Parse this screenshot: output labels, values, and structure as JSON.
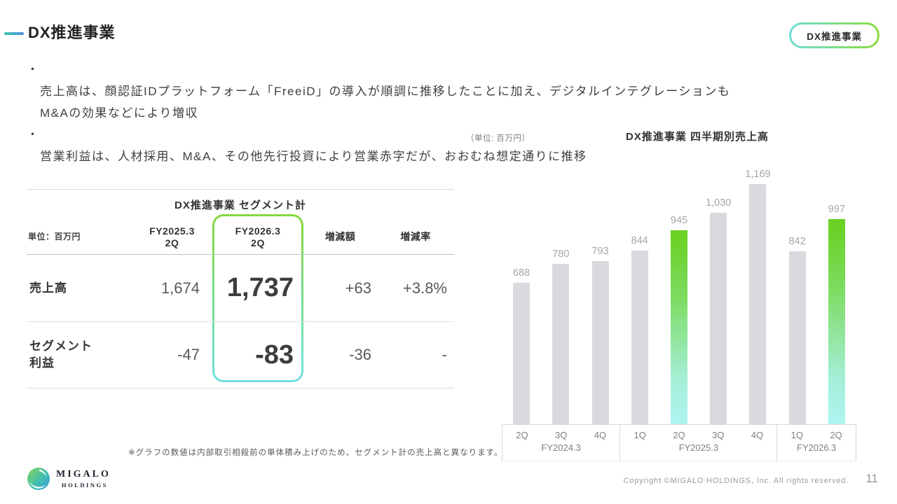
{
  "colors": {
    "accent_line_gradient": [
      "#3fc9a8",
      "#4a8fe2"
    ],
    "badge_border_gradient": [
      "#6fdcd4",
      "#8bdc3f"
    ],
    "highlight_border_gradient": [
      "#84d93c",
      "#6fe0e0"
    ],
    "bar_gray": "#d8dade",
    "bar_highlight_top": "#68d11e",
    "bar_highlight_bottom": "#aef4f0",
    "text_dark": "#3a3a3a",
    "label_gray": "#a6a6a6"
  },
  "header": {
    "title": "DX推進事業",
    "badge_label": "DX推進事業"
  },
  "bullets": [
    {
      "marker": "・",
      "text": "売上高は、顔認証IDプラットフォーム「FreeiD」の導入が順調に推移したことに加え、デジタルインテグレーションも\nM&Aの効果などにより増収"
    },
    {
      "marker": "・",
      "text": "営業利益は、人材採用、M&A、その他先行投資により営業赤字だが、おおむね想定通りに推移"
    }
  ],
  "table": {
    "title": "DX推進事業 セグメント計",
    "unit_label": "単位：百万円",
    "columns": [
      "FY2025.3\n2Q",
      "FY2026.3\n2Q",
      "増減額",
      "増減率"
    ],
    "rows": [
      {
        "label": "売上高",
        "prev": "1,674",
        "current": "1,737",
        "change": "+63",
        "rate": "+3.8%"
      },
      {
        "label": "セグメント\n利益",
        "prev": "-47",
        "current": "-83",
        "change": "-36",
        "rate": "-"
      }
    ],
    "footnote": "※グラフの数値は内部取引相殺前の単体積み上げのため、セグメント計の売上高と異なります。"
  },
  "chart_data": {
    "type": "bar",
    "title": "DX推進事業 四半期別売上高",
    "unit_label": "（単位: 百万円）",
    "categories": [
      "2Q",
      "3Q",
      "4Q",
      "1Q",
      "2Q",
      "3Q",
      "4Q",
      "1Q",
      "2Q"
    ],
    "groups": [
      {
        "label": "FY2024.3",
        "count": 3
      },
      {
        "label": "FY2025.3",
        "count": 4
      },
      {
        "label": "FY2026.3",
        "count": 2
      }
    ],
    "values": [
      688,
      780,
      793,
      844,
      945,
      1030,
      1169,
      842,
      997
    ],
    "value_labels": [
      "688",
      "780",
      "793",
      "844",
      "945",
      "1,030",
      "1,169",
      "842",
      "997"
    ],
    "highlighted_indices": [
      4,
      8
    ],
    "xlabel": "",
    "ylabel": "",
    "ylim": [
      0,
      1250
    ],
    "grid": false,
    "legend": false
  },
  "footer": {
    "logo_text": "MIGALO",
    "logo_sub": "HOLDINGS",
    "copyright": "Copyright ©MIGALO HOLDINGS, Inc. All rights reserved.",
    "page_number": "11"
  }
}
